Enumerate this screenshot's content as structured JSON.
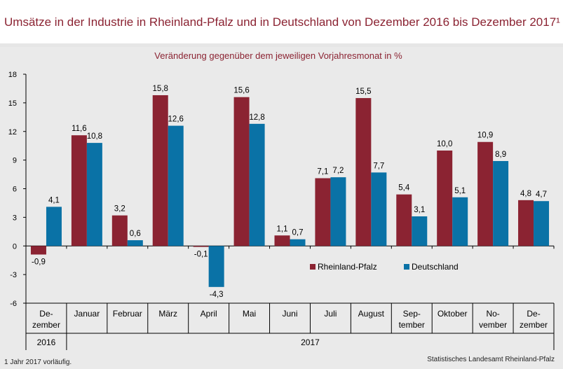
{
  "title": "Umsätze in der Industrie in Rheinland-Pfalz und in Deutschland von Dezember 2016 bis Dezember 2017¹",
  "footnote": "1 Jahr 2017 vorläufig.",
  "source": "Statistisches Landesamt Rheinland-Pfalz",
  "chart_data": {
    "type": "bar",
    "subtitle": "Veränderung gegenüber dem jeweiligen Vorjahresmonat in %",
    "categories": [
      [
        "De-",
        "zember"
      ],
      [
        "Januar"
      ],
      [
        "Februar"
      ],
      [
        "März"
      ],
      [
        "April"
      ],
      [
        "Mai"
      ],
      [
        "Juni"
      ],
      [
        "Juli"
      ],
      [
        "August"
      ],
      [
        "Sep-",
        "tember"
      ],
      [
        "Oktober"
      ],
      [
        "No-",
        "vember"
      ],
      [
        "De-",
        "zember"
      ]
    ],
    "year_groups": [
      {
        "label": "2016",
        "from": 0,
        "to": 0
      },
      {
        "label": "2017",
        "from": 1,
        "to": 12
      }
    ],
    "series": [
      {
        "name": "Rheinland-Pfalz",
        "color": "#8b2332",
        "values": [
          -0.9,
          11.6,
          3.2,
          15.8,
          -0.1,
          15.6,
          1.1,
          7.1,
          15.5,
          5.4,
          10.0,
          10.9,
          4.8
        ],
        "labels": [
          "-0,9",
          "11,6",
          "3,2",
          "15,8",
          "-0,1",
          "15,6",
          "1,1",
          "7,1",
          "15,5",
          "5,4",
          "10,0",
          "10,9",
          "4,8"
        ]
      },
      {
        "name": "Deutschland",
        "color": "#0a72a6",
        "values": [
          4.1,
          10.8,
          0.6,
          12.6,
          -4.3,
          12.8,
          0.7,
          7.2,
          7.7,
          3.1,
          5.1,
          8.9,
          4.7
        ],
        "labels": [
          "4,1",
          "10,8",
          "0,6",
          "12,6",
          "-4,3",
          "12,8",
          "0,7",
          "7,2",
          "7,7",
          "3,1",
          "5,1",
          "8,9",
          "4,7"
        ]
      }
    ],
    "y_ticks": [
      18,
      15,
      12,
      9,
      6,
      3,
      0,
      -3,
      -6
    ],
    "ylim": [
      -6,
      18
    ],
    "legend_position": "inside, lower right",
    "grid": false
  }
}
